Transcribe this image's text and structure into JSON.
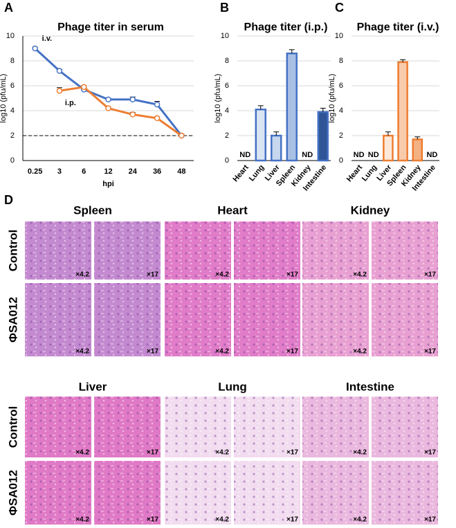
{
  "chart_data": [
    {
      "type": "line",
      "panel_label": "A",
      "title": "Phage titer in serum",
      "x_label": "hpi",
      "y_label": "log10 (pfu/mL)",
      "categories": [
        "0.25",
        "3",
        "6",
        "12",
        "24",
        "36",
        "48"
      ],
      "series": [
        {
          "name": "i.v.",
          "color": "#4472c4",
          "values": [
            9.0,
            7.2,
            5.7,
            4.9,
            4.9,
            4.5,
            2.0
          ],
          "errors": [
            0.1,
            0.1,
            0.1,
            0.1,
            0.2,
            0.25,
            0.1
          ]
        },
        {
          "name": "i.p.",
          "color": "#ed7d31",
          "values": [
            null,
            5.6,
            5.9,
            4.2,
            3.7,
            3.4,
            2.0
          ],
          "errors": [
            null,
            0.25,
            0.1,
            0.1,
            0.15,
            0.1,
            0.1
          ]
        }
      ],
      "ylim": [
        0,
        10
      ],
      "yticks": [
        0,
        2,
        4,
        6,
        8,
        10
      ],
      "grid": true,
      "reference_line": 2
    },
    {
      "type": "bar",
      "panel_label": "B",
      "title": "Phage titer (i.p.)",
      "y_label": "log10 (pfu/mL)",
      "categories": [
        "Heart",
        "Lung",
        "Liver",
        "Spleen",
        "Kidney",
        "Intestine"
      ],
      "values": [
        null,
        4.1,
        2.0,
        8.6,
        null,
        3.9
      ],
      "errors": [
        null,
        0.3,
        0.3,
        0.3,
        null,
        0.3
      ],
      "value_labels": [
        "ND",
        null,
        null,
        null,
        "ND",
        null
      ],
      "colors": [
        null,
        "#dae5f4",
        "#c6d7ee",
        "#a8c0e4",
        null,
        "#2f5597"
      ],
      "edge_color": "#4472c4",
      "ylim": [
        0,
        10
      ],
      "yticks": [
        0,
        2,
        4,
        6,
        8,
        10
      ],
      "grid": true
    },
    {
      "type": "bar",
      "panel_label": "C",
      "title": "Phage titer (i.v.)",
      "y_label": "log10 (pfu/mL)",
      "categories": [
        "Heart",
        "Lung",
        "Liver",
        "Spleen",
        "Kidney",
        "Intestine"
      ],
      "values": [
        null,
        null,
        2.0,
        7.9,
        1.7,
        null
      ],
      "errors": [
        null,
        null,
        0.3,
        0.2,
        0.2,
        null
      ],
      "value_labels": [
        "ND",
        "ND",
        null,
        null,
        null,
        "ND"
      ],
      "colors": [
        null,
        null,
        "#fde9d9",
        "#f8cbad",
        "#f4b183",
        null
      ],
      "edge_color": "#ed7d31",
      "ylim": [
        0,
        10
      ],
      "yticks": [
        0,
        2,
        4,
        6,
        8,
        10
      ],
      "grid": true
    }
  ],
  "panel_d": {
    "label": "D",
    "groups": [
      {
        "tissues": [
          "Spleen",
          "Heart",
          "Kidney"
        ]
      },
      {
        "tissues": [
          "Liver",
          "Lung",
          "Intestine"
        ]
      }
    ],
    "rows": [
      "Control",
      "ΦSA012"
    ],
    "magnifications": [
      "×4.2",
      "×17"
    ]
  }
}
